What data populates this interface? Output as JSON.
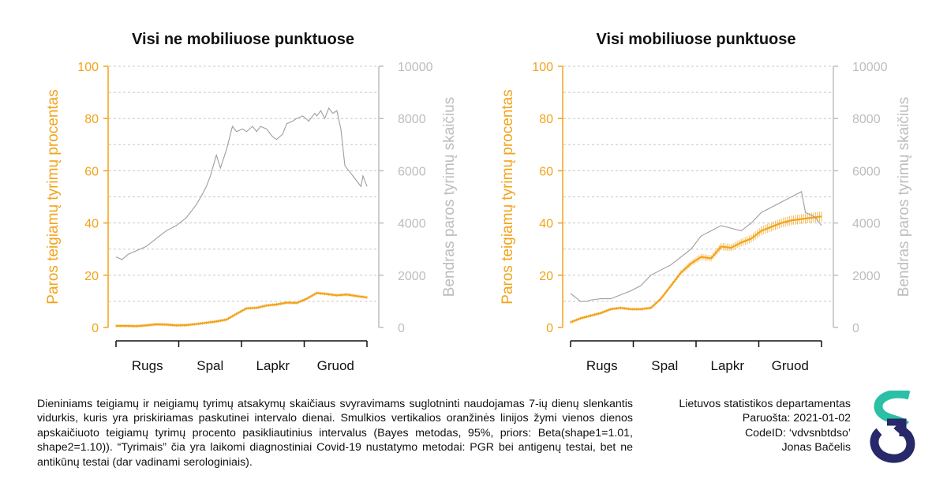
{
  "colors": {
    "positive_share": "#f2a31b",
    "total_tests": "#bdbdbd",
    "logo_teal": "#2bbfa5",
    "logo_navy": "#27296b"
  },
  "chart_data": [
    {
      "type": "line",
      "title": "Visi ne mobiliuose punktuose",
      "ylabel": "Paros teigiamų tyrimų procentas",
      "y2label": "Bendras paros tyrimų skaičius",
      "ylim": [
        0,
        100
      ],
      "y2lim": [
        0,
        10000
      ],
      "yticks": [
        "0",
        "20",
        "40",
        "60",
        "80",
        "100"
      ],
      "y2ticks": [
        "0",
        "2000",
        "4000",
        "6000",
        "8000",
        "10000"
      ],
      "xlabels": [
        "Rugs",
        "Spal",
        "Lapkr",
        "Gruod"
      ],
      "grid": "dashed horizontal",
      "series": [
        {
          "axis": "left",
          "color": "#f2a31b",
          "error_bars": true,
          "x": [
            0,
            5,
            10,
            15,
            20,
            25,
            30,
            35,
            40,
            45,
            50,
            55,
            60,
            65,
            70,
            75,
            80,
            85,
            90,
            95,
            100,
            105,
            110,
            115,
            120,
            125
          ],
          "values": [
            0.6,
            0.6,
            0.5,
            0.8,
            1.2,
            1.1,
            0.8,
            0.9,
            1.3,
            1.8,
            2.3,
            3.0,
            5.2,
            7.3,
            7.5,
            8.4,
            8.8,
            9.5,
            9.4,
            11.0,
            13.2,
            12.8,
            12.3,
            12.6,
            12.0,
            11.5
          ]
        },
        {
          "axis": "right",
          "x": [
            0,
            3,
            6,
            9,
            12,
            15,
            20,
            25,
            30,
            35,
            40,
            43,
            45,
            47,
            50,
            52,
            55,
            58,
            60,
            63,
            65,
            68,
            70,
            72,
            75,
            78,
            80,
            83,
            85,
            88,
            90,
            93,
            96,
            99,
            100,
            102,
            104,
            106,
            108,
            110,
            112,
            114,
            116,
            117,
            118,
            120,
            122,
            123,
            124,
            125
          ],
          "values": [
            2700,
            2600,
            2800,
            2900,
            3000,
            3100,
            3400,
            3700,
            3900,
            4200,
            4700,
            5100,
            5400,
            5800,
            6600,
            6100,
            6800,
            7700,
            7500,
            7600,
            7500,
            7700,
            7500,
            7700,
            7600,
            7300,
            7200,
            7400,
            7800,
            7900,
            8000,
            8100,
            7900,
            8200,
            8100,
            8300,
            8000,
            8400,
            8200,
            8300,
            7600,
            6200,
            6000,
            5900,
            5800,
            5600,
            5400,
            5800,
            5600,
            5400
          ]
        }
      ]
    },
    {
      "type": "line",
      "title": "Visi mobiliuose punktuose",
      "ylabel": "Paros teigiamų tyrimų procentas",
      "y2label": "Bendras paros tyrimų skaičius",
      "ylim": [
        0,
        100
      ],
      "y2lim": [
        0,
        10000
      ],
      "yticks": [
        "0",
        "20",
        "40",
        "60",
        "80",
        "100"
      ],
      "y2ticks": [
        "0",
        "2000",
        "4000",
        "6000",
        "8000",
        "10000"
      ],
      "xlabels": [
        "Rugs",
        "Spal",
        "Lapkr",
        "Gruod"
      ],
      "grid": "dashed horizontal",
      "series": [
        {
          "axis": "left",
          "color": "#f2a31b",
          "error_bars": true,
          "x": [
            0,
            5,
            10,
            15,
            20,
            25,
            30,
            35,
            40,
            45,
            50,
            55,
            60,
            65,
            70,
            75,
            80,
            85,
            90,
            95,
            100,
            105,
            110,
            115,
            120,
            125
          ],
          "values": [
            2.0,
            3.5,
            4.5,
            5.5,
            7.0,
            7.5,
            7.0,
            7.0,
            7.5,
            11.0,
            16.0,
            21.0,
            24.5,
            27.0,
            26.5,
            31.0,
            30.5,
            32.5,
            34.0,
            37.0,
            38.5,
            40.0,
            41.0,
            41.5,
            42.0,
            42.5
          ]
        },
        {
          "axis": "right",
          "x": [
            0,
            5,
            8,
            10,
            15,
            20,
            25,
            30,
            35,
            40,
            45,
            50,
            55,
            60,
            65,
            70,
            75,
            80,
            85,
            90,
            95,
            100,
            105,
            110,
            115,
            117,
            120,
            122,
            125
          ],
          "values": [
            1300,
            1000,
            1000,
            1050,
            1100,
            1100,
            1250,
            1400,
            1600,
            2000,
            2200,
            2400,
            2700,
            3000,
            3500,
            3700,
            3900,
            3800,
            3700,
            4000,
            4400,
            4600,
            4800,
            5000,
            5200,
            4400,
            4300,
            4200,
            3900
          ]
        }
      ]
    }
  ],
  "note": {
    "text": "Dieniniams teigiamų ir neigiamų tyrimų atsakymų skaičiaus svyravimams suglotninti naudojamas 7-ių dienų slenkantis vidurkis, kuris yra priskiriamas paskutinei intervalo dienai. Smulkios vertikalios oranžinės linijos žymi vienos dienos apskaičiuoto teigiamų tyrimų procento pasikliautinius intervalus (Bayes metodas, 95%, priors: Beta(shape1=1.01, shape2=1.10)). “Tyrimais” čia yra laikomi diagnostiniai Covid-19 nustatymo metodai: PGR bei antigenų testai, bet ne antikūnų testai (dar vadinami serologiniais)."
  },
  "credits": {
    "org": "Lietuvos statistikos departamentas",
    "prepared": "Paruošta: 2021-01-02",
    "code": "CodeID: ‘vdvsnbtdso’",
    "author": "Jonas Bačelis"
  },
  "logo_icon": "statistics-lithuania-logo"
}
